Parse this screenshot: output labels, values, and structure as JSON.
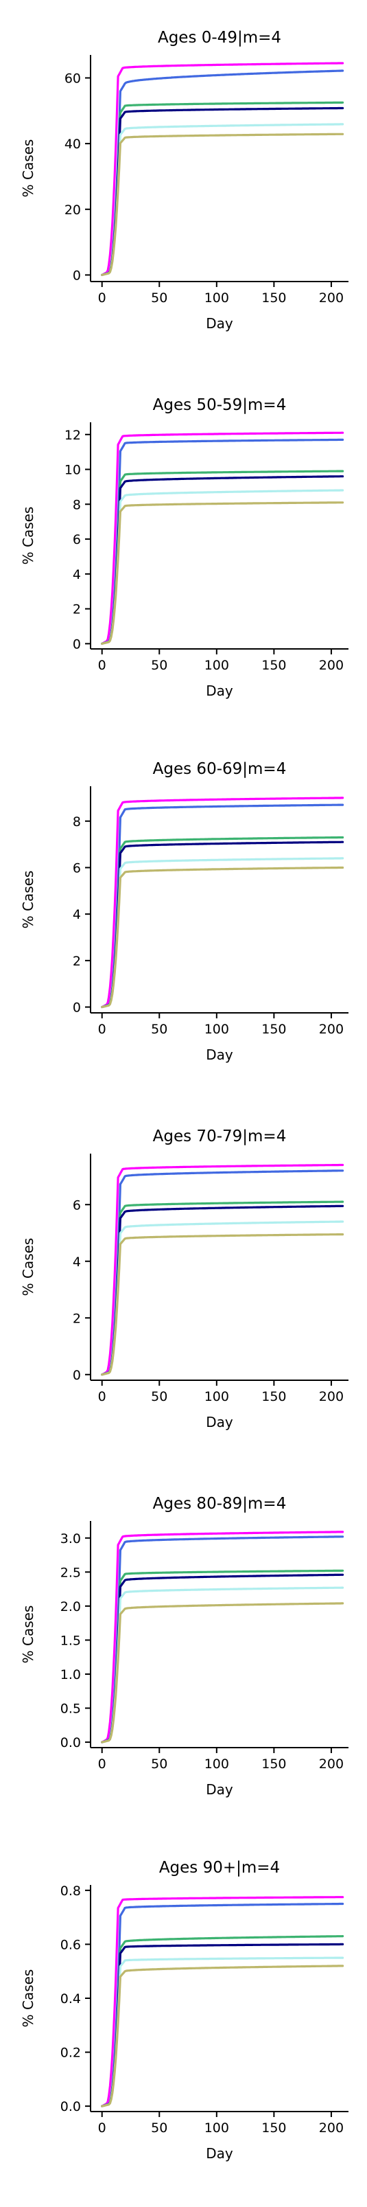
{
  "chart_data": [
    {
      "type": "line",
      "title": "Ages 0-49|m=4",
      "xlabel": "Day",
      "ylabel": "% Cases",
      "xlim": [
        -10,
        215
      ],
      "ylim": [
        -2,
        67
      ],
      "xticks": [
        0,
        50,
        100,
        150,
        200
      ],
      "yticks": [
        0,
        20,
        40,
        60
      ],
      "grid": false,
      "legend": "none",
      "series": [
        {
          "color": "#ff00ff",
          "plateau_day": 18,
          "start": 63.0,
          "end": 64.5
        },
        {
          "color": "#4169e1",
          "plateau_day": 20,
          "start": 58.3,
          "end": 62.2
        },
        {
          "color": "#3cb371",
          "plateau_day": 20,
          "start": 51.5,
          "end": 52.5
        },
        {
          "color": "#000080",
          "plateau_day": 20,
          "start": 49.6,
          "end": 50.8
        },
        {
          "color": "#afeeee",
          "plateau_day": 20,
          "start": 44.5,
          "end": 45.9
        },
        {
          "color": "#bdb76b",
          "plateau_day": 20,
          "start": 41.8,
          "end": 42.9
        }
      ]
    },
    {
      "type": "line",
      "title": "Ages 50-59|m=4",
      "xlabel": "Day",
      "ylabel": "% Cases",
      "xlim": [
        -10,
        215
      ],
      "ylim": [
        -0.3,
        12.7
      ],
      "xticks": [
        0,
        50,
        100,
        150,
        200
      ],
      "yticks": [
        0,
        2,
        4,
        6,
        8,
        10,
        12
      ],
      "grid": false,
      "legend": "none",
      "series": [
        {
          "color": "#ff00ff",
          "plateau_day": 18,
          "start": 11.9,
          "end": 12.1
        },
        {
          "color": "#4169e1",
          "plateau_day": 20,
          "start": 11.5,
          "end": 11.7
        },
        {
          "color": "#3cb371",
          "plateau_day": 20,
          "start": 9.7,
          "end": 9.9
        },
        {
          "color": "#000080",
          "plateau_day": 20,
          "start": 9.3,
          "end": 9.6
        },
        {
          "color": "#afeeee",
          "plateau_day": 20,
          "start": 8.5,
          "end": 8.8
        },
        {
          "color": "#bdb76b",
          "plateau_day": 20,
          "start": 7.9,
          "end": 8.1
        }
      ]
    },
    {
      "type": "line",
      "title": "Ages 60-69|m=4",
      "xlabel": "Day",
      "ylabel": "% Cases",
      "xlim": [
        -10,
        215
      ],
      "ylim": [
        -0.25,
        9.5
      ],
      "xticks": [
        0,
        50,
        100,
        150,
        200
      ],
      "yticks": [
        0,
        2,
        4,
        6,
        8
      ],
      "grid": false,
      "legend": "none",
      "series": [
        {
          "color": "#ff00ff",
          "plateau_day": 18,
          "start": 8.8,
          "end": 9.0
        },
        {
          "color": "#4169e1",
          "plateau_day": 20,
          "start": 8.5,
          "end": 8.7
        },
        {
          "color": "#3cb371",
          "plateau_day": 20,
          "start": 7.1,
          "end": 7.3
        },
        {
          "color": "#000080",
          "plateau_day": 20,
          "start": 6.9,
          "end": 7.1
        },
        {
          "color": "#afeeee",
          "plateau_day": 20,
          "start": 6.2,
          "end": 6.4
        },
        {
          "color": "#bdb76b",
          "plateau_day": 20,
          "start": 5.8,
          "end": 6.0
        }
      ]
    },
    {
      "type": "line",
      "title": "Ages 70-79|m=4",
      "xlabel": "Day",
      "ylabel": "% Cases",
      "xlim": [
        -10,
        215
      ],
      "ylim": [
        -0.2,
        7.8
      ],
      "xticks": [
        0,
        50,
        100,
        150,
        200
      ],
      "yticks": [
        0,
        2,
        4,
        6
      ],
      "grid": false,
      "legend": "none",
      "series": [
        {
          "color": "#ff00ff",
          "plateau_day": 18,
          "start": 7.25,
          "end": 7.4
        },
        {
          "color": "#4169e1",
          "plateau_day": 20,
          "start": 7.0,
          "end": 7.2
        },
        {
          "color": "#3cb371",
          "plateau_day": 20,
          "start": 5.95,
          "end": 6.1
        },
        {
          "color": "#000080",
          "plateau_day": 20,
          "start": 5.75,
          "end": 5.95
        },
        {
          "color": "#afeeee",
          "plateau_day": 20,
          "start": 5.2,
          "end": 5.4
        },
        {
          "color": "#bdb76b",
          "plateau_day": 20,
          "start": 4.8,
          "end": 4.95
        }
      ]
    },
    {
      "type": "line",
      "title": "Ages 80-89|m=4",
      "xlabel": "Day",
      "ylabel": "% Cases",
      "xlim": [
        -10,
        215
      ],
      "ylim": [
        -0.08,
        3.25
      ],
      "xticks": [
        0,
        50,
        100,
        150,
        200
      ],
      "yticks": [
        0.0,
        0.5,
        1.0,
        1.5,
        2.0,
        2.5,
        3.0
      ],
      "ytick_labels": [
        "0.0",
        "0.5",
        "1.0",
        "1.5",
        "2.0",
        "2.5",
        "3.0"
      ],
      "grid": false,
      "legend": "none",
      "series": [
        {
          "color": "#ff00ff",
          "plateau_day": 18,
          "start": 3.02,
          "end": 3.09
        },
        {
          "color": "#4169e1",
          "plateau_day": 20,
          "start": 2.94,
          "end": 3.02
        },
        {
          "color": "#3cb371",
          "plateau_day": 20,
          "start": 2.47,
          "end": 2.52
        },
        {
          "color": "#000080",
          "plateau_day": 20,
          "start": 2.38,
          "end": 2.46
        },
        {
          "color": "#afeeee",
          "plateau_day": 20,
          "start": 2.2,
          "end": 2.27
        },
        {
          "color": "#bdb76b",
          "plateau_day": 20,
          "start": 1.96,
          "end": 2.04
        }
      ]
    },
    {
      "type": "line",
      "title": "Ages 90+|m=4",
      "xlabel": "Day",
      "ylabel": "% Cases",
      "xlim": [
        -10,
        215
      ],
      "ylim": [
        -0.02,
        0.82
      ],
      "xticks": [
        0,
        50,
        100,
        150,
        200
      ],
      "yticks": [
        0.0,
        0.2,
        0.4,
        0.6,
        0.8
      ],
      "ytick_labels": [
        "0.0",
        "0.2",
        "0.4",
        "0.6",
        "0.8"
      ],
      "grid": false,
      "legend": "none",
      "series": [
        {
          "color": "#ff00ff",
          "plateau_day": 18,
          "start": 0.765,
          "end": 0.775
        },
        {
          "color": "#4169e1",
          "plateau_day": 20,
          "start": 0.735,
          "end": 0.75
        },
        {
          "color": "#3cb371",
          "plateau_day": 20,
          "start": 0.61,
          "end": 0.63
        },
        {
          "color": "#000080",
          "plateau_day": 20,
          "start": 0.59,
          "end": 0.6
        },
        {
          "color": "#afeeee",
          "plateau_day": 20,
          "start": 0.54,
          "end": 0.55
        },
        {
          "color": "#bdb76b",
          "plateau_day": 20,
          "start": 0.5,
          "end": 0.52
        }
      ]
    }
  ]
}
